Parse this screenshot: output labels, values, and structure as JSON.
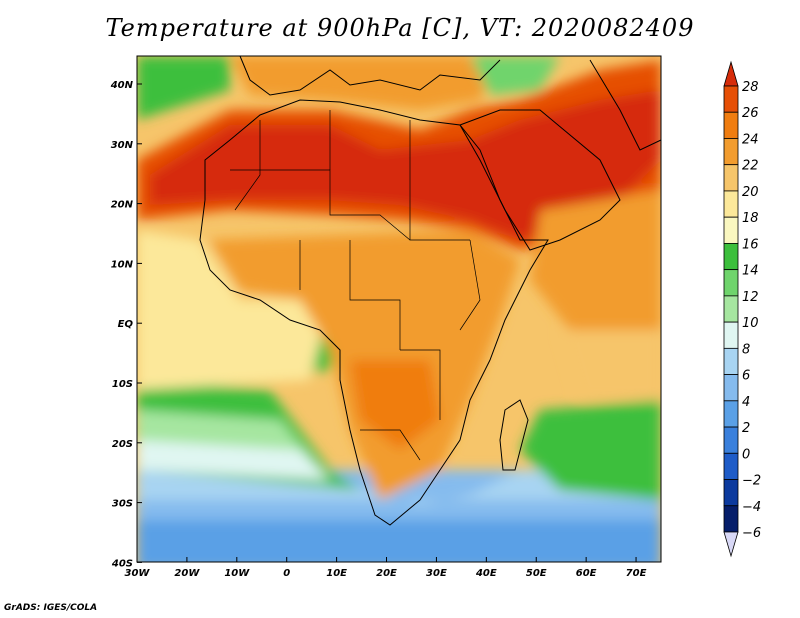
{
  "title": "Temperature at 900hPa [C], VT: 2020082409",
  "credit": "GrADS: IGES/COLA",
  "map": {
    "lon_range": [
      -30,
      75
    ],
    "lat_range": [
      -40,
      45
    ],
    "lon_ticks": [
      "30W",
      "20W",
      "10W",
      "0",
      "10E",
      "20E",
      "30E",
      "40E",
      "50E",
      "60E",
      "70E"
    ],
    "lat_ticks": [
      "40N",
      "30N",
      "20N",
      "10N",
      "EQ",
      "10S",
      "20S",
      "30S",
      "40S"
    ]
  },
  "colorbar": {
    "labels": [
      "28",
      "26",
      "24",
      "22",
      "20",
      "18",
      "16",
      "14",
      "12",
      "10",
      "8",
      "6",
      "4",
      "2",
      "0",
      "−2",
      "−4",
      "−6"
    ],
    "colors": [
      "#d62c0a",
      "#e64f06",
      "#f07d10",
      "#f29c2e",
      "#f6c56a",
      "#fce89a",
      "#faf7c0",
      "#3cbf3c",
      "#6fd46c",
      "#a6e6a0",
      "#e0f6f2",
      "#a8d4f2",
      "#85bbee",
      "#5aa0e6",
      "#3a80dc",
      "#1e5cc8",
      "#0c3a9e",
      "#061e6a",
      "#d8d8f6"
    ]
  }
}
